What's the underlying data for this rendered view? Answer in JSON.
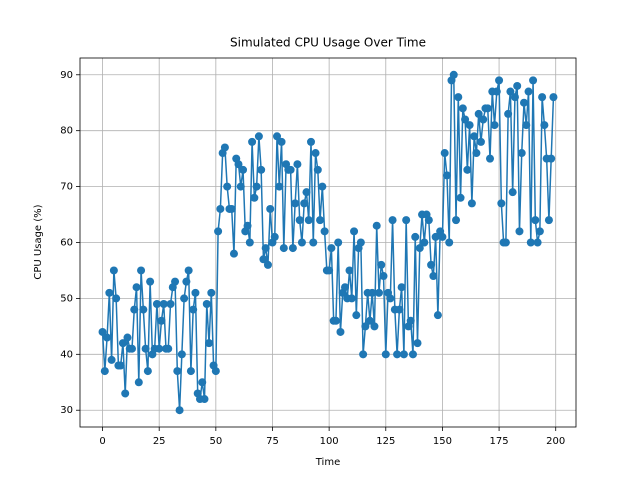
{
  "chart_data": {
    "type": "line",
    "title": "Simulated CPU Usage Over Time",
    "xlabel": "Time",
    "ylabel": "CPU Usage (%)",
    "color": "#1f77b4",
    "grid": true,
    "xlim": [
      -9.95,
      208.95
    ],
    "ylim": [
      27,
      93
    ],
    "xticks": [
      0,
      25,
      50,
      75,
      100,
      125,
      150,
      175,
      200
    ],
    "yticks": [
      30,
      40,
      50,
      60,
      70,
      80,
      90
    ],
    "x": [
      0,
      1,
      2,
      3,
      4,
      5,
      6,
      7,
      8,
      9,
      10,
      11,
      12,
      13,
      14,
      15,
      16,
      17,
      18,
      19,
      20,
      21,
      22,
      23,
      24,
      25,
      26,
      27,
      28,
      29,
      30,
      31,
      32,
      33,
      34,
      35,
      36,
      37,
      38,
      39,
      40,
      41,
      42,
      43,
      44,
      45,
      46,
      47,
      48,
      49,
      50,
      51,
      52,
      53,
      54,
      55,
      56,
      57,
      58,
      59,
      60,
      61,
      62,
      63,
      64,
      65,
      66,
      67,
      68,
      69,
      70,
      71,
      72,
      73,
      74,
      75,
      76,
      77,
      78,
      79,
      80,
      81,
      82,
      83,
      84,
      85,
      86,
      87,
      88,
      89,
      90,
      91,
      92,
      93,
      94,
      95,
      96,
      97,
      98,
      99,
      100,
      101,
      102,
      103,
      104,
      105,
      106,
      107,
      108,
      109,
      110,
      111,
      112,
      113,
      114,
      115,
      116,
      117,
      118,
      119,
      120,
      121,
      122,
      123,
      124,
      125,
      126,
      127,
      128,
      129,
      130,
      131,
      132,
      133,
      134,
      135,
      136,
      137,
      138,
      139,
      140,
      141,
      142,
      143,
      144,
      145,
      146,
      147,
      148,
      149,
      150,
      151,
      152,
      153,
      154,
      155,
      156,
      157,
      158,
      159,
      160,
      161,
      162,
      163,
      164,
      165,
      166,
      167,
      168,
      169,
      170,
      171,
      172,
      173,
      174,
      175,
      176,
      177,
      178,
      179,
      180,
      181,
      182,
      183,
      184,
      185,
      186,
      187,
      188,
      189,
      190,
      191,
      192,
      193,
      194,
      195,
      196,
      197,
      198,
      199
    ],
    "values": [
      44,
      37,
      43,
      51,
      39,
      55,
      50,
      38,
      38,
      42,
      33,
      43,
      41,
      41,
      48,
      52,
      35,
      55,
      48,
      41,
      37,
      53,
      40,
      41,
      49,
      41,
      46,
      49,
      41,
      41,
      49,
      52,
      53,
      37,
      30,
      40,
      50,
      53,
      55,
      37,
      48,
      51,
      33,
      32,
      35,
      32,
      49,
      42,
      51,
      38,
      37,
      62,
      66,
      76,
      77,
      70,
      66,
      66,
      58,
      75,
      74,
      70,
      73,
      62,
      63,
      60,
      78,
      68,
      70,
      79,
      73,
      57,
      59,
      56,
      66,
      60,
      61,
      79,
      70,
      78,
      59,
      74,
      73,
      73,
      59,
      67,
      74,
      64,
      60,
      67,
      69,
      64,
      78,
      60,
      76,
      73,
      64,
      70,
      62,
      55,
      55,
      59,
      46,
      46,
      60,
      44,
      51,
      52,
      50,
      55,
      50,
      62,
      47,
      59,
      60,
      40,
      45,
      51,
      46,
      51,
      45,
      63,
      51,
      56,
      54,
      40,
      51,
      50,
      64,
      48,
      40,
      48,
      52,
      40,
      64,
      45,
      46,
      40,
      61,
      42,
      59,
      65,
      60,
      65,
      64,
      56,
      54,
      61,
      47,
      62,
      61,
      76,
      72,
      60,
      89,
      90,
      64,
      86,
      68,
      84,
      82,
      73,
      81,
      67,
      79,
      76,
      83,
      78,
      82,
      84,
      84,
      75,
      87,
      81,
      87,
      89,
      67,
      60,
      60,
      83,
      87,
      69,
      86,
      88,
      62,
      76,
      85,
      81,
      87,
      60,
      89,
      64,
      60,
      62,
      86,
      81,
      75,
      64,
      75,
      86
    ]
  }
}
